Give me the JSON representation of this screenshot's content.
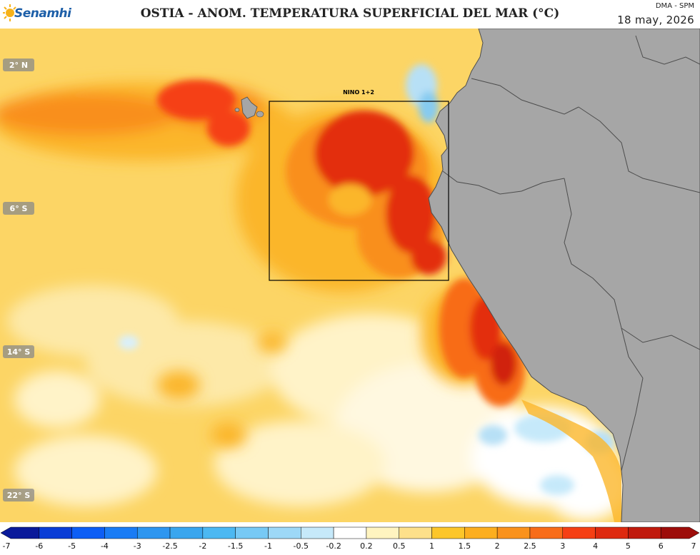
{
  "header": {
    "logo_label": "Senamhi",
    "title": "OSTIA - ANOM. TEMPERATURA SUPERFICIAL DEL MAR (°C)",
    "credit": "DMA - SPM",
    "date": "18 may, 2026"
  },
  "map": {
    "region_label": "NINO 1+2",
    "latitude_labels": [
      "2° N",
      "6° S",
      "14° S",
      "22° S"
    ],
    "land_color": "#a6a6a6",
    "border_color": "#4d4d4d"
  },
  "colorbar": {
    "ticks": [
      "-7",
      "-6",
      "-5",
      "-4",
      "-3",
      "-2.5",
      "-2",
      "-1.5",
      "-1",
      "-0.5",
      "-0.2",
      "0.2",
      "0.5",
      "1",
      "1.5",
      "2",
      "2.5",
      "3",
      "4",
      "5",
      "6",
      "7"
    ],
    "colors": [
      "#0a1a9a",
      "#0a3dd6",
      "#0d5ef5",
      "#1a7cf5",
      "#2e96f0",
      "#3aa6ee",
      "#4cb8f2",
      "#77c9f5",
      "#9dd8f7",
      "#c6e9fa",
      "#ffffff",
      "#fff4c0",
      "#fde08a",
      "#fcc62a",
      "#fcae1f",
      "#fa921c",
      "#f86c19",
      "#f53f14",
      "#de2a10",
      "#c01a0d",
      "#9d0d0a"
    ]
  }
}
